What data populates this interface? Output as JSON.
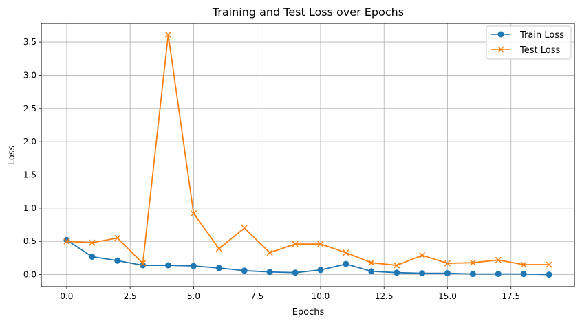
{
  "chart_data": {
    "type": "line",
    "title": "Training and Test Loss over Epochs",
    "xlabel": "Epochs",
    "ylabel": "Loss",
    "xlim": [
      -1,
      20
    ],
    "ylim": [
      -0.18,
      3.78
    ],
    "x_ticks": [
      0.0,
      2.5,
      5.0,
      7.5,
      10.0,
      12.5,
      15.0,
      17.5
    ],
    "x_tick_labels": [
      "0.0",
      "2.5",
      "5.0",
      "7.5",
      "10.0",
      "12.5",
      "15.0",
      "17.5"
    ],
    "y_ticks": [
      0.0,
      0.5,
      1.0,
      1.5,
      2.0,
      2.5,
      3.0,
      3.5
    ],
    "y_tick_labels": [
      "0.0",
      "0.5",
      "1.0",
      "1.5",
      "2.0",
      "2.5",
      "3.0",
      "3.5"
    ],
    "grid": true,
    "legend_position": "top-right",
    "x": [
      0,
      1,
      2,
      3,
      4,
      5,
      6,
      7,
      8,
      9,
      10,
      11,
      12,
      13,
      14,
      15,
      16,
      17,
      18,
      19
    ],
    "series": [
      {
        "name": "Train Loss",
        "color": "#1f77b4",
        "marker": "circle",
        "values": [
          0.52,
          0.27,
          0.21,
          0.14,
          0.14,
          0.13,
          0.1,
          0.06,
          0.04,
          0.03,
          0.07,
          0.16,
          0.05,
          0.03,
          0.02,
          0.02,
          0.01,
          0.01,
          0.01,
          0.0
        ]
      },
      {
        "name": "Test Loss",
        "color": "#ff7f0e",
        "marker": "x",
        "values": [
          0.5,
          0.48,
          0.55,
          0.17,
          3.61,
          0.92,
          0.39,
          0.7,
          0.33,
          0.46,
          0.46,
          0.33,
          0.18,
          0.14,
          0.29,
          0.17,
          0.18,
          0.22,
          0.15,
          0.15
        ]
      }
    ]
  }
}
